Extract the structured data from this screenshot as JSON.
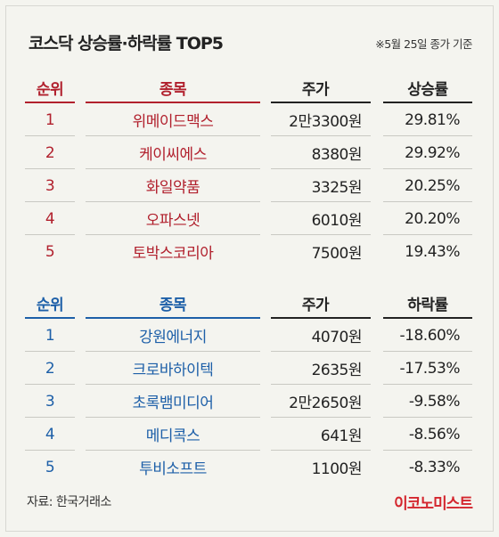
{
  "title": "코스닥 상승률·하락률 TOP5",
  "basis": "※5월 25일 종가 기준",
  "up_table": {
    "headers": {
      "rank": "순위",
      "name": "종목",
      "price": "주가",
      "rate": "상승률"
    },
    "rows": [
      {
        "rank": "1",
        "name": "위메이드맥스",
        "price": "2만3300원",
        "rate": "29.81%"
      },
      {
        "rank": "2",
        "name": "케이씨에스",
        "price": "8380원",
        "rate": "29.92%"
      },
      {
        "rank": "3",
        "name": "화일약품",
        "price": "3325원",
        "rate": "20.25%"
      },
      {
        "rank": "4",
        "name": "오파스넷",
        "price": "6010원",
        "rate": "20.20%"
      },
      {
        "rank": "5",
        "name": "토박스코리아",
        "price": "7500원",
        "rate": "19.43%"
      }
    ]
  },
  "down_table": {
    "headers": {
      "rank": "순위",
      "name": "종목",
      "price": "주가",
      "rate": "하락률"
    },
    "rows": [
      {
        "rank": "1",
        "name": "강원에너지",
        "price": "4070원",
        "rate": "-18.60%"
      },
      {
        "rank": "2",
        "name": "크로바하이텍",
        "price": "2635원",
        "rate": "-17.53%"
      },
      {
        "rank": "3",
        "name": "초록뱀미디어",
        "price": "2만2650원",
        "rate": "-9.58%"
      },
      {
        "rank": "4",
        "name": "메디콕스",
        "price": "641원",
        "rate": "-8.56%"
      },
      {
        "rank": "5",
        "name": "투비소프트",
        "price": "1100원",
        "rate": "-8.33%"
      }
    ]
  },
  "source": "자료: 한국거래소",
  "logo": "이코노미스트",
  "colors": {
    "up": "#b1202d",
    "down": "#1d5fa8",
    "logo": "#d4262e"
  }
}
